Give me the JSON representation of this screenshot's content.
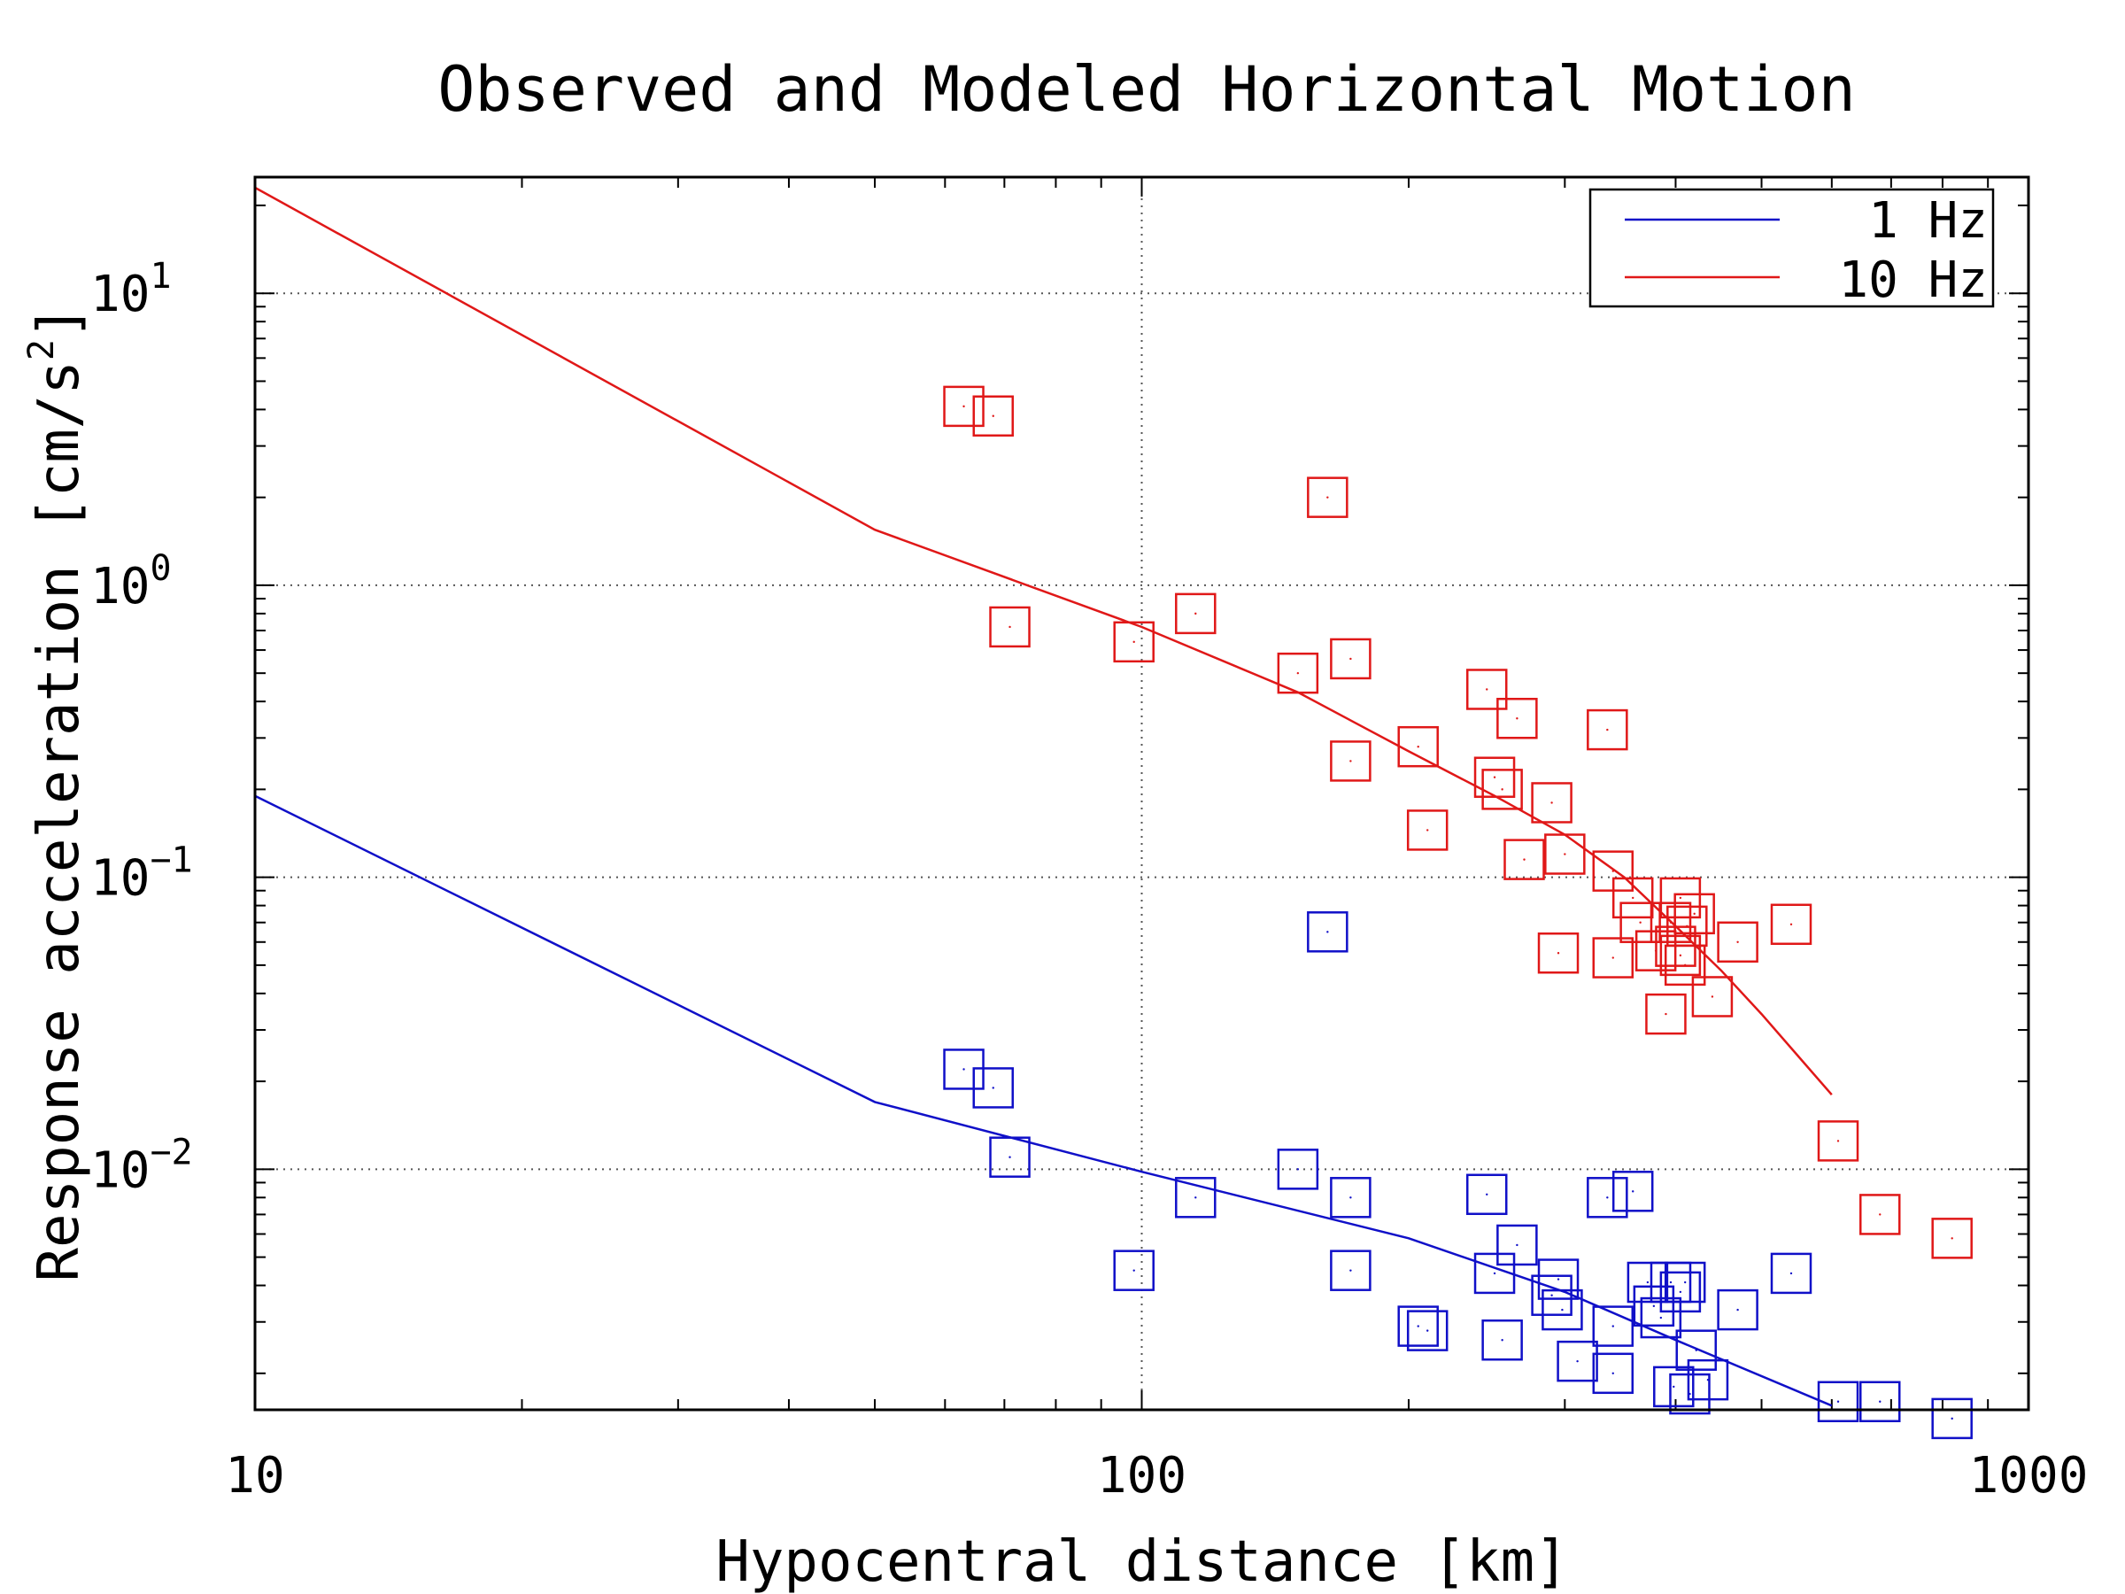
{
  "chart_data": {
    "type": "scatter",
    "title": "Observed and Modeled Horizontal Motion",
    "xlabel": "Hypocentral distance [km]",
    "ylabel": "Response acceleration [cm/s^2]",
    "ylabel_parts": {
      "main": "Response acceleration [cm/s",
      "exp": "2",
      "close": "]"
    },
    "x_scale": "log",
    "y_scale": "log",
    "xlim": [
      10,
      1000
    ],
    "ylim": [
      0.0015,
      25
    ],
    "x_ticks": [
      {
        "value": 10,
        "label": "10"
      },
      {
        "value": 100,
        "label": "100"
      },
      {
        "value": 1000,
        "label": "1000"
      }
    ],
    "y_ticks": [
      {
        "value": 10,
        "base": "10",
        "exp": "1"
      },
      {
        "value": 1,
        "base": "10",
        "exp": "0"
      },
      {
        "value": 0.1,
        "base": "10",
        "exp": "−1"
      },
      {
        "value": 0.01,
        "base": "10",
        "exp": "−2"
      }
    ],
    "grid": "dotted at major ticks",
    "legend_position": "top-right",
    "series": [
      {
        "name": "1 Hz",
        "color": "#1010c8",
        "model_line": {
          "x": [
            10,
            50,
            100,
            200,
            300,
            400,
            600
          ],
          "y": [
            0.19,
            0.017,
            0.0098,
            0.0058,
            0.0038,
            0.0026,
            0.00155
          ]
        },
        "observed_x": [
          63,
          68,
          71,
          98,
          115,
          150,
          162,
          172,
          172,
          205,
          210,
          245,
          250,
          255,
          265,
          290,
          295,
          298,
          310,
          335,
          340,
          340,
          358,
          372,
          378,
          385,
          395,
          398,
          405,
          410,
          415,
          422,
          435,
          470,
          540,
          610,
          680,
          820
        ],
        "observed_y": [
          0.022,
          0.019,
          0.011,
          0.0045,
          0.008,
          0.01,
          0.065,
          0.008,
          0.0045,
          0.0029,
          0.0028,
          0.0082,
          0.0044,
          0.0026,
          0.0055,
          0.0037,
          0.0042,
          0.0033,
          0.0022,
          0.008,
          0.0029,
          0.002,
          0.0084,
          0.0041,
          0.0034,
          0.0031,
          0.0041,
          0.0018,
          0.0038,
          0.0041,
          0.0017,
          0.0024,
          0.0019,
          0.0033,
          0.0044,
          0.0016,
          0.0016,
          0.0014
        ]
      },
      {
        "name": "10 Hz",
        "color": "#e01818",
        "model_line": {
          "x": [
            10,
            50,
            100,
            150,
            200,
            250,
            300,
            350,
            400,
            450,
            500,
            600
          ],
          "y": [
            23,
            1.55,
            0.72,
            0.43,
            0.27,
            0.19,
            0.14,
            0.1,
            0.068,
            0.048,
            0.034,
            0.018
          ]
        },
        "observed_x": [
          63,
          68,
          71,
          98,
          115,
          150,
          162,
          172,
          172,
          205,
          210,
          245,
          250,
          255,
          265,
          270,
          290,
          295,
          300,
          335,
          340,
          340,
          358,
          365,
          380,
          390,
          395,
          400,
          405,
          405,
          410,
          412,
          420,
          440,
          470,
          540,
          610,
          680,
          820
        ],
        "observed_y": [
          4.1,
          3.8,
          0.72,
          0.64,
          0.8,
          0.5,
          2.0,
          0.56,
          0.25,
          0.28,
          0.145,
          0.44,
          0.22,
          0.2,
          0.35,
          0.115,
          0.18,
          0.055,
          0.12,
          0.32,
          0.053,
          0.105,
          0.085,
          0.07,
          0.056,
          0.034,
          0.07,
          0.058,
          0.085,
          0.054,
          0.05,
          0.068,
          0.075,
          0.039,
          0.06,
          0.069,
          0.0125,
          0.007,
          0.0058
        ]
      }
    ]
  }
}
